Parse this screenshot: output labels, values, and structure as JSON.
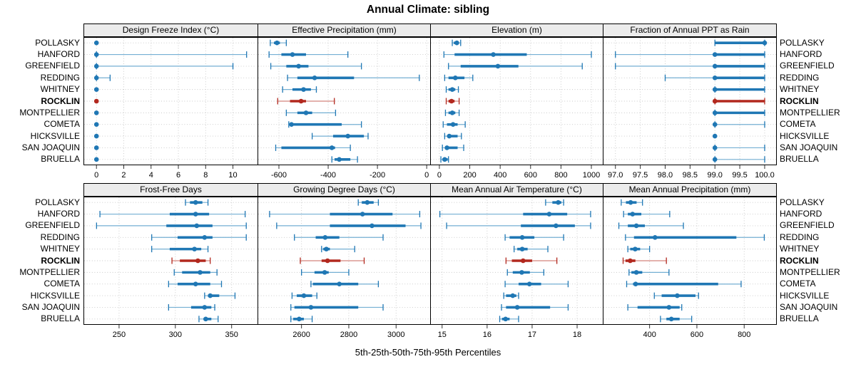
{
  "title": "Annual Climate: sibling",
  "caption": "5th-25th-50th-75th-95th Percentiles",
  "highlight_site": "ROCKLIN",
  "colors": {
    "blue": "#1f77b4",
    "blue_light": "#74afd3",
    "red": "#b2281e",
    "red_light": "#d4837c",
    "grid": "#c8c8c8",
    "strip_bg": "#ececec",
    "border": "#000000"
  },
  "sites": [
    "POLLASKY",
    "HANFORD",
    "GREENFIELD",
    "REDDING",
    "WHITNEY",
    "ROCKLIN",
    "MONTPELLIER",
    "COMETA",
    "HICKSVILLE",
    "SAN JOAQUIN",
    "BRUELLA"
  ],
  "chart_data": [
    {
      "type": "dotplot-range",
      "title": "Design Freeze Index (°C)",
      "row": 0,
      "col": 0,
      "xlim": [
        -0.9,
        11.8
      ],
      "ticks": [
        0,
        2,
        4,
        6,
        8,
        10
      ],
      "tick_labels": [
        "0",
        "2",
        "4",
        "6",
        "8",
        "10"
      ],
      "percentiles": [
        "5th",
        "25th",
        "50th",
        "75th",
        "95th"
      ],
      "series": [
        {
          "name": "POLLASKY",
          "values": [
            0,
            0,
            0,
            0,
            0
          ]
        },
        {
          "name": "HANFORD",
          "values": [
            0,
            0,
            0,
            0,
            11
          ]
        },
        {
          "name": "GREENFIELD",
          "values": [
            0,
            0,
            0,
            0,
            10
          ]
        },
        {
          "name": "REDDING",
          "values": [
            0,
            0,
            0,
            0,
            1
          ]
        },
        {
          "name": "WHITNEY",
          "values": [
            0,
            0,
            0,
            0,
            0
          ]
        },
        {
          "name": "ROCKLIN",
          "values": [
            0,
            0,
            0,
            0,
            0
          ]
        },
        {
          "name": "MONTPELLIER",
          "values": [
            0,
            0,
            0,
            0,
            0
          ]
        },
        {
          "name": "COMETA",
          "values": [
            0,
            0,
            0,
            0,
            0
          ]
        },
        {
          "name": "HICKSVILLE",
          "values": [
            0,
            0,
            0,
            0,
            0
          ]
        },
        {
          "name": "SAN JOAQUIN",
          "values": [
            0,
            0,
            0,
            0,
            0
          ]
        },
        {
          "name": "BRUELLA",
          "values": [
            0,
            0,
            0,
            0,
            0
          ]
        }
      ]
    },
    {
      "type": "dotplot-range",
      "title": "Effective Precipitation (mm)",
      "row": 0,
      "col": 1,
      "xlim": [
        -684,
        14
      ],
      "ticks": [
        -600,
        -400,
        -200,
        0
      ],
      "tick_labels": [
        "-600",
        "-400",
        "-200",
        "0"
      ],
      "series": [
        {
          "name": "POLLASKY",
          "values": [
            -635,
            -620,
            -608,
            -596,
            -570
          ]
        },
        {
          "name": "HANFORD",
          "values": [
            -640,
            -590,
            -545,
            -490,
            -320
          ]
        },
        {
          "name": "GREENFIELD",
          "values": [
            -633,
            -570,
            -520,
            -480,
            -265
          ]
        },
        {
          "name": "REDDING",
          "values": [
            -565,
            -525,
            -455,
            -295,
            -30
          ]
        },
        {
          "name": "WHITNEY",
          "values": [
            -585,
            -545,
            -500,
            -470,
            -448
          ]
        },
        {
          "name": "ROCKLIN",
          "values": [
            -605,
            -555,
            -510,
            -490,
            -375
          ]
        },
        {
          "name": "MONTPELLIER",
          "values": [
            -570,
            -525,
            -490,
            -465,
            -370
          ]
        },
        {
          "name": "COMETA",
          "values": [
            -560,
            -553,
            -549,
            -345,
            -265
          ]
        },
        {
          "name": "HICKSVILLE",
          "values": [
            -465,
            -380,
            -320,
            -255,
            -238
          ]
        },
        {
          "name": "SAN JOAQUIN",
          "values": [
            -613,
            -590,
            -385,
            -372,
            -310
          ]
        },
        {
          "name": "BRUELLA",
          "values": [
            -385,
            -374,
            -355,
            -310,
            -281
          ]
        }
      ]
    },
    {
      "type": "dotplot-range",
      "title": "Elevation (m)",
      "row": 0,
      "col": 2,
      "xlim": [
        -56,
        1075
      ],
      "ticks": [
        0,
        200,
        400,
        600,
        800,
        1000
      ],
      "tick_labels": [
        "0",
        "200",
        "400",
        "600",
        "800",
        "1000"
      ],
      "series": [
        {
          "name": "POLLASKY",
          "values": [
            85,
            95,
            115,
            128,
            140
          ]
        },
        {
          "name": "HANFORD",
          "values": [
            30,
            100,
            355,
            575,
            1000
          ]
        },
        {
          "name": "GREENFIELD",
          "values": [
            60,
            140,
            385,
            520,
            940
          ]
        },
        {
          "name": "REDDING",
          "values": [
            35,
            60,
            105,
            165,
            220
          ]
        },
        {
          "name": "WHITNEY",
          "values": [
            45,
            60,
            85,
            105,
            125
          ]
        },
        {
          "name": "ROCKLIN",
          "values": [
            45,
            60,
            80,
            100,
            130
          ]
        },
        {
          "name": "MONTPELLIER",
          "values": [
            40,
            60,
            85,
            105,
            130
          ]
        },
        {
          "name": "COMETA",
          "values": [
            25,
            50,
            90,
            120,
            170
          ]
        },
        {
          "name": "HICKSVILLE",
          "values": [
            35,
            55,
            65,
            120,
            145
          ]
        },
        {
          "name": "SAN JOAQUIN",
          "values": [
            20,
            40,
            50,
            120,
            160
          ]
        },
        {
          "name": "BRUELLA",
          "values": [
            10,
            20,
            35,
            55,
            60
          ]
        }
      ]
    },
    {
      "type": "dotplot-range",
      "title": "Fraction of Annual PPT as Rain",
      "row": 0,
      "col": 3,
      "xlim": [
        96.76,
        100.23
      ],
      "ticks": [
        97.0,
        97.5,
        98.0,
        98.5,
        99.0,
        99.5,
        100.0
      ],
      "tick_labels": [
        "97.0",
        "97.5",
        "98.0",
        "98.5",
        "99.0",
        "99.5",
        "100.0"
      ],
      "series": [
        {
          "name": "POLLASKY",
          "values": [
            99,
            99,
            100,
            100,
            100
          ]
        },
        {
          "name": "HANFORD",
          "values": [
            97,
            99,
            99,
            100,
            100
          ]
        },
        {
          "name": "GREENFIELD",
          "values": [
            97,
            99,
            99,
            100,
            100
          ]
        },
        {
          "name": "REDDING",
          "values": [
            98,
            99,
            99,
            100,
            100
          ]
        },
        {
          "name": "WHITNEY",
          "values": [
            99,
            99,
            99,
            100,
            100
          ]
        },
        {
          "name": "ROCKLIN",
          "values": [
            99,
            99,
            99,
            100,
            100
          ]
        },
        {
          "name": "MONTPELLIER",
          "values": [
            99,
            99,
            99,
            100,
            100
          ]
        },
        {
          "name": "COMETA",
          "values": [
            99,
            99,
            99,
            99,
            100
          ]
        },
        {
          "name": "HICKSVILLE",
          "values": [
            99,
            99,
            99,
            99,
            99
          ]
        },
        {
          "name": "SAN JOAQUIN",
          "values": [
            99,
            99,
            99,
            99,
            100
          ]
        },
        {
          "name": "BRUELLA",
          "values": [
            99,
            99,
            99,
            99,
            100
          ]
        }
      ]
    },
    {
      "type": "dotplot-range",
      "title": "Frost-Free Days",
      "row": 1,
      "col": 0,
      "xlim": [
        219,
        373
      ],
      "ticks": [
        250,
        300,
        350
      ],
      "tick_labels": [
        "250",
        "300",
        "350"
      ],
      "series": [
        {
          "name": "POLLASKY",
          "values": [
            309,
            313,
            318,
            324,
            329
          ]
        },
        {
          "name": "HANFORD",
          "values": [
            233,
            295,
            318,
            330,
            362
          ]
        },
        {
          "name": "GREENFIELD",
          "values": [
            230,
            292,
            319,
            333,
            363
          ]
        },
        {
          "name": "REDDING",
          "values": [
            279,
            302,
            326,
            333,
            363
          ]
        },
        {
          "name": "WHITNEY",
          "values": [
            279,
            295,
            317,
            323,
            329
          ]
        },
        {
          "name": "ROCKLIN",
          "values": [
            297,
            304,
            320,
            327,
            331
          ]
        },
        {
          "name": "MONTPELLIER",
          "values": [
            299,
            306,
            322,
            331,
            337
          ]
        },
        {
          "name": "COMETA",
          "values": [
            294,
            302,
            318,
            331,
            341
          ]
        },
        {
          "name": "HICKSVILLE",
          "values": [
            326,
            329,
            331,
            339,
            353
          ]
        },
        {
          "name": "SAN JOAQUIN",
          "values": [
            294,
            314,
            326,
            332,
            335
          ]
        },
        {
          "name": "BRUELLA",
          "values": [
            321,
            325,
            327,
            332,
            338
          ]
        }
      ]
    },
    {
      "type": "dotplot-range",
      "title": "Growing Degree Days (°C)",
      "row": 1,
      "col": 1,
      "xlim": [
        2417,
        3144
      ],
      "ticks": [
        2600,
        2800,
        3000
      ],
      "tick_labels": [
        "2600",
        "2800",
        "3000"
      ],
      "series": [
        {
          "name": "POLLASKY",
          "values": [
            2840,
            2855,
            2878,
            2905,
            2925
          ]
        },
        {
          "name": "HANFORD",
          "values": [
            2465,
            2720,
            2858,
            2985,
            3100
          ]
        },
        {
          "name": "GREENFIELD",
          "values": [
            2495,
            2720,
            2898,
            3040,
            3105
          ]
        },
        {
          "name": "REDDING",
          "values": [
            2570,
            2660,
            2700,
            2760,
            2945
          ]
        },
        {
          "name": "WHITNEY",
          "values": [
            2685,
            2692,
            2705,
            2720,
            2825
          ]
        },
        {
          "name": "ROCKLIN",
          "values": [
            2595,
            2685,
            2710,
            2765,
            2865
          ]
        },
        {
          "name": "MONTPELLIER",
          "values": [
            2600,
            2655,
            2698,
            2715,
            2800
          ]
        },
        {
          "name": "COMETA",
          "values": [
            2640,
            2648,
            2760,
            2840,
            2925
          ]
        },
        {
          "name": "HICKSVILLE",
          "values": [
            2560,
            2580,
            2610,
            2645,
            2665
          ]
        },
        {
          "name": "SAN JOAQUIN",
          "values": [
            2555,
            2570,
            2640,
            2840,
            2945
          ]
        },
        {
          "name": "BRUELLA",
          "values": [
            2555,
            2565,
            2590,
            2610,
            2645
          ]
        }
      ]
    },
    {
      "type": "dotplot-range",
      "title": "Mean Annual Air Temperature (°C)",
      "row": 1,
      "col": 2,
      "xlim": [
        14.75,
        18.57
      ],
      "ticks": [
        15,
        16,
        17,
        18
      ],
      "tick_labels": [
        "15",
        "16",
        "17",
        "18"
      ],
      "series": [
        {
          "name": "POLLASKY",
          "values": [
            17.3,
            17.45,
            17.58,
            17.65,
            17.7
          ]
        },
        {
          "name": "HANFORD",
          "values": [
            14.95,
            16.8,
            17.38,
            17.78,
            18.3
          ]
        },
        {
          "name": "GREENFIELD",
          "values": [
            15.1,
            16.75,
            17.53,
            17.95,
            18.3
          ]
        },
        {
          "name": "REDDING",
          "values": [
            16.4,
            16.5,
            16.78,
            17.05,
            17.7
          ]
        },
        {
          "name": "WHITNEY",
          "values": [
            16.6,
            16.67,
            16.78,
            16.9,
            17.35
          ]
        },
        {
          "name": "ROCKLIN",
          "values": [
            16.42,
            16.55,
            16.8,
            17.0,
            17.55
          ]
        },
        {
          "name": "MONTPELLIER",
          "values": [
            16.45,
            16.57,
            16.77,
            16.95,
            17.26
          ]
        },
        {
          "name": "COMETA",
          "values": [
            16.4,
            16.7,
            16.94,
            17.2,
            17.8
          ]
        },
        {
          "name": "HICKSVILLE",
          "values": [
            16.37,
            16.42,
            16.57,
            16.65,
            16.7
          ]
        },
        {
          "name": "SAN JOAQUIN",
          "values": [
            16.32,
            16.42,
            16.67,
            17.4,
            17.8
          ]
        },
        {
          "name": "BRUELLA",
          "values": [
            16.28,
            16.33,
            16.41,
            16.5,
            16.7
          ]
        }
      ]
    },
    {
      "type": "dotplot-range",
      "title": "Mean Annual Precipitation (mm)",
      "row": 1,
      "col": 3,
      "xlim": [
        205,
        935
      ],
      "ticks": [
        400,
        600,
        800
      ],
      "tick_labels": [
        "400",
        "600",
        "800"
      ],
      "series": [
        {
          "name": "POLLASKY",
          "values": [
            280,
            300,
            320,
            345,
            370
          ]
        },
        {
          "name": "HANFORD",
          "values": [
            290,
            308,
            328,
            365,
            485
          ]
        },
        {
          "name": "GREENFIELD",
          "values": [
            270,
            308,
            344,
            380,
            543
          ]
        },
        {
          "name": "REDDING",
          "values": [
            298,
            334,
            423,
            767,
            885
          ]
        },
        {
          "name": "WHITNEY",
          "values": [
            308,
            318,
            339,
            360,
            400
          ]
        },
        {
          "name": "ROCKLIN",
          "values": [
            288,
            298,
            318,
            340,
            471
          ]
        },
        {
          "name": "MONTPELLIER",
          "values": [
            313,
            323,
            344,
            369,
            482
          ]
        },
        {
          "name": "COMETA",
          "values": [
            303,
            330,
            341,
            690,
            787
          ]
        },
        {
          "name": "HICKSVILLE",
          "values": [
            420,
            451,
            517,
            594,
            607
          ]
        },
        {
          "name": "SAN JOAQUIN",
          "values": [
            308,
            349,
            482,
            527,
            536
          ]
        },
        {
          "name": "BRUELLA",
          "values": [
            446,
            471,
            492,
            527,
            578
          ]
        }
      ]
    }
  ]
}
